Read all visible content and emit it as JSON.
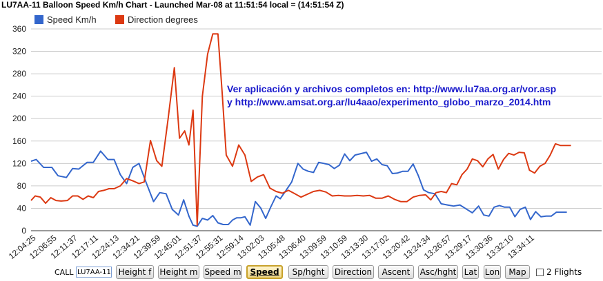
{
  "title": "LU7AA-11 Balloon Speed Km/h Chart - Launched Mar-08 at 11:51:54 local = (14:51:54 Z)",
  "annotation": {
    "line1": "Ver aplicación y archivos completos en: http://www.lu7aa.org.ar/vor.asp",
    "line2": "y   http://www.amsat.org.ar/lu4aao/experimento_globo_marzo_2014.htm"
  },
  "controls": {
    "call_label": "CALL",
    "call_value": "LU7AA-11",
    "buttons": [
      {
        "label": "Height f",
        "active": false
      },
      {
        "label": "Height m",
        "active": false
      },
      {
        "label": "Speed m",
        "active": false
      },
      {
        "label": "Speed",
        "active": true
      },
      {
        "label": "Sp/hght",
        "active": false
      },
      {
        "label": "Direction",
        "active": false
      },
      {
        "label": "Ascent",
        "active": false
      },
      {
        "label": "Asc/hght",
        "active": false
      },
      {
        "label": "Lat",
        "active": false
      },
      {
        "label": "Lon",
        "active": false
      },
      {
        "label": "Map",
        "active": false
      }
    ],
    "flights_label": "2 Flights",
    "flights_checked": false
  },
  "chart_data": {
    "type": "line",
    "grid": true,
    "legend_position": "top-left",
    "ylim": [
      0,
      360
    ],
    "yticks": [
      0,
      40,
      80,
      120,
      160,
      200,
      240,
      280,
      320,
      360
    ],
    "xtick_labels": [
      "12:04:25",
      "12:06:55",
      "12:11:37",
      "12:17:11",
      "12:24:13",
      "12:34:21",
      "12:39:59",
      "12:45:01",
      "12:51:37",
      "12:55:31",
      "12:59:14",
      "13:02:03",
      "13:05:48",
      "13:06:40",
      "13:09:59",
      "13:10:59",
      "13:13:30",
      "13:17:02",
      "13:20:42",
      "13:24:34",
      "13:26:57",
      "13:29:17",
      "13:30:36",
      "13:32:10",
      "13:34:11"
    ],
    "series": [
      {
        "name": "Speed Km/h",
        "color": "#3366cc",
        "values": [
          124,
          127,
          113,
          113,
          98,
          95,
          111,
          110,
          122,
          122,
          142,
          127,
          127,
          100,
          84,
          113,
          120,
          85,
          52,
          68,
          66,
          38,
          28,
          55,
          26,
          10,
          8,
          22,
          19,
          27,
          14,
          11,
          11,
          19,
          23,
          23,
          25,
          10,
          52,
          41,
          22,
          43,
          62,
          57,
          73,
          87,
          120,
          110,
          106,
          104,
          122,
          120,
          118,
          111,
          117,
          137,
          125,
          135,
          140,
          124,
          128,
          118,
          116,
          102,
          103,
          106,
          106,
          119,
          98,
          73,
          68,
          66,
          48,
          46,
          44,
          46,
          39,
          32,
          44,
          28,
          26,
          42,
          45,
          42,
          42,
          25,
          38,
          42,
          20,
          34,
          25,
          26,
          26,
          33,
          33,
          33
        ],
        "x_index": [
          0,
          0.25,
          0.6,
          1.0,
          1.3,
          1.7,
          2.0,
          2.3,
          2.7,
          3.0,
          3.35,
          3.7,
          4.0,
          4.3,
          4.6,
          4.9,
          5.2,
          5.55,
          5.9,
          6.2,
          6.5,
          6.8,
          7.1,
          7.35,
          7.6,
          7.8,
          8.0,
          8.25,
          8.5,
          8.75,
          9.0,
          9.25,
          9.5,
          9.7,
          9.9,
          10.1,
          10.3,
          10.55,
          10.8,
          11.05,
          11.3,
          11.55,
          11.8,
          12.0,
          12.3,
          12.55,
          12.85,
          13.1,
          13.35,
          13.6,
          13.85,
          14.1,
          14.35,
          14.6,
          14.85,
          15.1,
          15.35,
          15.6,
          16.15,
          16.4,
          16.65,
          16.9,
          17.15,
          17.4,
          17.65,
          17.9,
          18.15,
          18.4,
          18.65,
          18.9,
          19.15,
          19.45,
          19.75,
          20.05,
          20.35,
          20.65,
          20.95,
          21.25,
          21.55,
          21.8,
          22.05,
          22.3,
          22.55,
          22.8,
          23.05,
          23.3,
          23.55,
          23.8,
          24.05,
          24.3,
          24.55,
          24.8,
          25.05,
          25.3,
          25.55,
          25.8
        ]
      },
      {
        "name": "Direction degrees",
        "color": "#dc3912",
        "values": [
          54,
          62,
          60,
          49,
          59,
          54,
          53,
          54,
          62,
          62,
          56,
          62,
          59,
          70,
          72,
          75,
          75,
          80,
          93,
          89,
          84,
          87,
          161,
          125,
          115,
          200,
          291,
          165,
          178,
          153,
          215,
          10,
          240,
          315,
          351,
          351,
          248,
          135,
          115,
          153,
          135,
          88,
          96,
          100,
          76,
          70,
          67,
          72,
          66,
          60,
          65,
          70,
          72,
          69,
          62,
          63,
          62,
          62,
          63,
          62,
          63,
          58,
          58,
          62,
          56,
          52,
          52,
          60,
          63,
          64,
          55,
          68,
          70,
          68,
          84,
          82,
          100,
          110,
          128,
          125,
          114,
          128,
          136,
          110,
          127,
          138,
          135,
          140,
          139,
          108,
          103,
          115,
          120,
          135,
          155,
          152,
          152,
          152
        ],
        "x_index": [
          0,
          0.2,
          0.45,
          0.7,
          0.95,
          1.2,
          1.45,
          1.75,
          2.0,
          2.25,
          2.5,
          2.75,
          3.0,
          3.25,
          3.5,
          3.75,
          4.0,
          4.3,
          4.6,
          4.9,
          5.2,
          5.45,
          5.75,
          6.05,
          6.3,
          6.6,
          6.9,
          7.15,
          7.4,
          7.6,
          7.8,
          8.0,
          8.25,
          8.5,
          8.75,
          9.0,
          9.2,
          9.4,
          9.7,
          10.0,
          10.3,
          10.6,
          10.9,
          11.2,
          11.5,
          11.8,
          12.1,
          12.4,
          12.7,
          13.0,
          13.3,
          13.6,
          13.9,
          14.2,
          14.5,
          14.8,
          15.1,
          15.4,
          15.7,
          16.0,
          16.3,
          16.6,
          16.9,
          17.2,
          17.5,
          17.8,
          18.1,
          18.4,
          18.7,
          19.0,
          19.25,
          19.5,
          19.75,
          20.0,
          20.25,
          20.5,
          20.75,
          21.0,
          21.25,
          21.5,
          21.75,
          22.0,
          22.25,
          22.5,
          22.75,
          23.0,
          23.25,
          23.5,
          23.75,
          24.0,
          24.25,
          24.5,
          24.75,
          25.0,
          25.25,
          25.5,
          25.75,
          26.0
        ]
      }
    ]
  }
}
